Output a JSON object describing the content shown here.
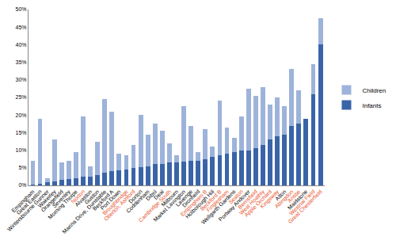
{
  "chart_data": {
    "type": "bar",
    "stacked": true,
    "grid": false,
    "legend": "right",
    "categories": [
      "Empingham",
      "Great Easton",
      "Wintersbourne Gunner",
      "Wakerley",
      "Orangefield",
      "Sevenley",
      "Morning Thorpe",
      "Norton",
      "Alvaston",
      "Guston",
      "Marina Drive, Dunstable",
      "Beckford A",
      "Port Down",
      "Broughbridge",
      "Ollerton, Ashford",
      "Dorton",
      "Coddenham",
      "Dibol",
      "Deal",
      "Cambridge South",
      "Milbourn",
      "Market Lavington",
      "Lavenge",
      "Dronfield",
      "Empingham B",
      "Holborough Hill",
      "Beckford B",
      "Finglesham",
      "Wellgarth Gardens",
      "Seaton",
      "Portway Andover",
      "Berrisfield",
      "West Hoathly",
      "Apple Orchard",
      "Kingsway",
      "Alton",
      "Abingdon",
      "Anstie",
      "Maidstone",
      "Westnal Field",
      "Great Chesterfield"
    ],
    "colors": [
      "#000000",
      "#000000",
      "#000000",
      "#000000",
      "#000000",
      "#000000",
      "#000000",
      "#e8502a",
      "#000000",
      "#000000",
      "#000000",
      "#000000",
      "#000000",
      "#e8502a",
      "#e8502a",
      "#000000",
      "#000000",
      "#000000",
      "#000000",
      "#e8502a",
      "#000000",
      "#000000",
      "#000000",
      "#000000",
      "#e8502a",
      "#000000",
      "#e8502a",
      "#e8502a",
      "#000000",
      "#e8502a",
      "#000000",
      "#e8502a",
      "#e8502a",
      "#e8502a",
      "#e8502a",
      "#000000",
      "#e8502a",
      "#e8502a",
      "#000000",
      "#e8502a",
      "#e8502a"
    ],
    "series": [
      {
        "name": "Infants",
        "color": "#3a64a8",
        "values": [
          0.2,
          0.5,
          1,
          1.2,
          1.5,
          1.7,
          2,
          2.5,
          2.5,
          3,
          3.5,
          4,
          4.2,
          4.5,
          5,
          5.2,
          5.5,
          6,
          6,
          6.5,
          6.5,
          6.8,
          7,
          7,
          7.5,
          8,
          8.5,
          9,
          9.5,
          10,
          10,
          10.5,
          11.5,
          13,
          14,
          14.5,
          17,
          17.5,
          19,
          26,
          40
        ]
      },
      {
        "name": "Children",
        "color": "#9db3da",
        "values": [
          6.8,
          18.5,
          1,
          11.8,
          5,
          5.3,
          7.5,
          17,
          3,
          9.5,
          21,
          17,
          4.8,
          4,
          6.5,
          14.8,
          9,
          11.5,
          9.5,
          5.5,
          2,
          15.7,
          10,
          2.5,
          8.5,
          3,
          15.5,
          7.5,
          4,
          9.5,
          17.5,
          15,
          16.5,
          10,
          11,
          8,
          16,
          9.5,
          0,
          8.5,
          7.5
        ]
      }
    ],
    "ylim": [
      0,
      50
    ],
    "yticks": [
      {
        "value": 0,
        "label": "0%"
      },
      {
        "value": 5,
        "label": "5%"
      },
      {
        "value": 10,
        "label": "10%"
      },
      {
        "value": 15,
        "label": "15%"
      },
      {
        "value": 20,
        "label": "20%"
      },
      {
        "value": 25,
        "label": "25%"
      },
      {
        "value": 30,
        "label": "30%"
      },
      {
        "value": 35,
        "label": "35%"
      },
      {
        "value": 40,
        "label": "40%"
      },
      {
        "value": 45,
        "label": "45%"
      },
      {
        "value": 50,
        "label": "50%"
      }
    ]
  }
}
